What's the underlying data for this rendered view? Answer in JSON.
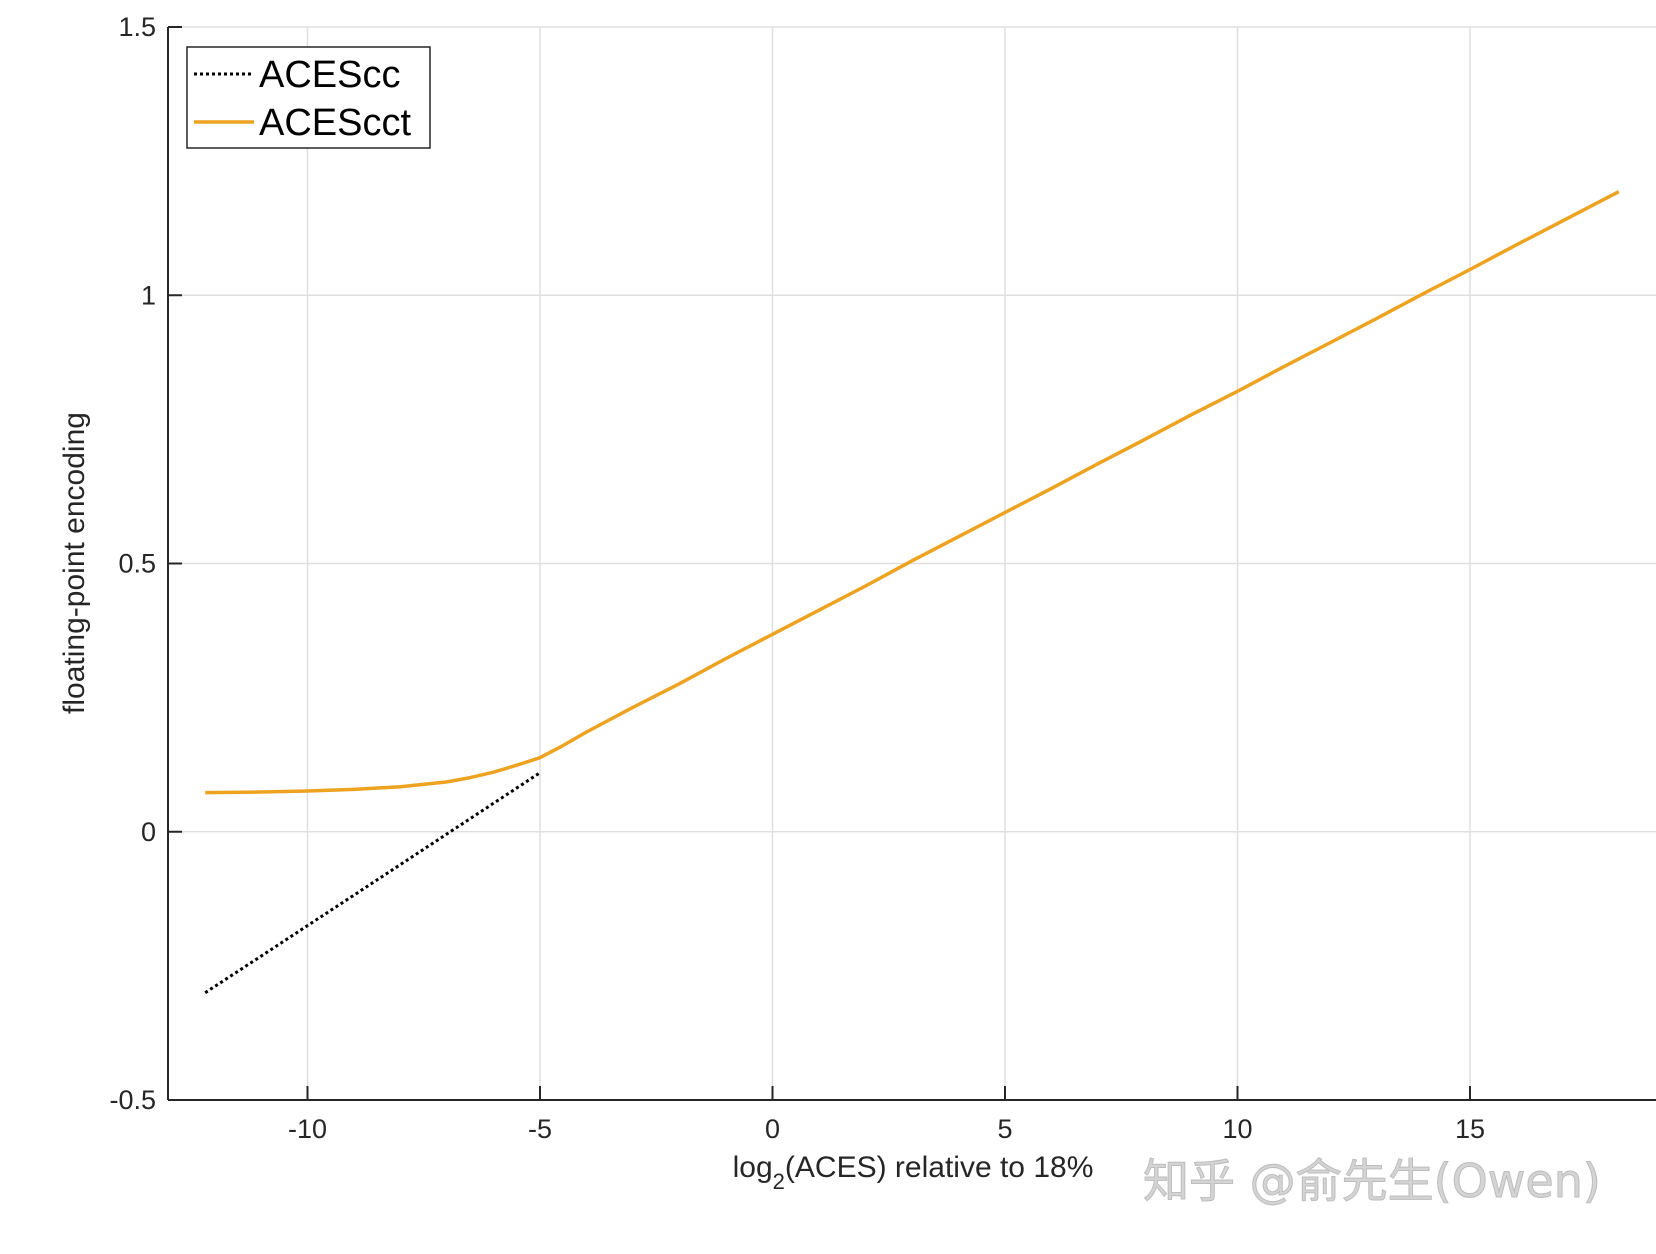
{
  "chart_data": {
    "type": "line",
    "xlabel": "log₂(ACES) relative to 18%",
    "xlabel_parts": {
      "prefix": "log",
      "subscript": "2",
      "suffix": "(ACES) relative to 18%"
    },
    "ylabel": "floating-point encoding",
    "xlim": [
      -13,
      19
    ],
    "ylim": [
      -0.5,
      1.5
    ],
    "xticks": [
      -10,
      -5,
      0,
      5,
      10,
      15
    ],
    "xtick_labels": [
      "-10",
      "-5",
      "0",
      "5",
      "10",
      "15"
    ],
    "yticks": [
      -0.5,
      0,
      0.5,
      1,
      1.5
    ],
    "ytick_labels": [
      "-0.5",
      "0",
      "0.5",
      "1",
      "1.5"
    ],
    "grid": true,
    "legend_position": "top-left",
    "series": [
      {
        "name": "ACEScc",
        "color": "#000000",
        "style": "dotted",
        "x": [
          -12.2,
          -11,
          -10,
          -9,
          -8,
          -7,
          -6,
          -5
        ],
        "y": [
          -0.3,
          -0.232,
          -0.175,
          -0.118,
          -0.061,
          -0.004,
          0.053,
          0.11
        ]
      },
      {
        "name": "ACEScct",
        "color": "#EDA220",
        "style": "solid",
        "x": [
          -12.2,
          -11,
          -10,
          -9,
          -8,
          -7,
          -6.5,
          -6,
          -5.5,
          -5,
          -4.5,
          -4,
          -3,
          -2,
          -1,
          0,
          1,
          2,
          3,
          4,
          5,
          6,
          7,
          8,
          9,
          10,
          11,
          12,
          13,
          14,
          15,
          16,
          17,
          18.2
        ],
        "y": [
          0.073,
          0.074,
          0.076,
          0.079,
          0.084,
          0.093,
          0.101,
          0.111,
          0.124,
          0.138,
          0.161,
          0.186,
          0.232,
          0.276,
          0.323,
          0.368,
          0.413,
          0.458,
          0.505,
          0.55,
          0.595,
          0.64,
          0.686,
          0.731,
          0.777,
          0.821,
          0.867,
          0.912,
          0.957,
          1.003,
          1.048,
          1.094,
          1.139,
          1.193
        ]
      }
    ]
  },
  "watermark": "知乎 @俞先生(Owen)"
}
